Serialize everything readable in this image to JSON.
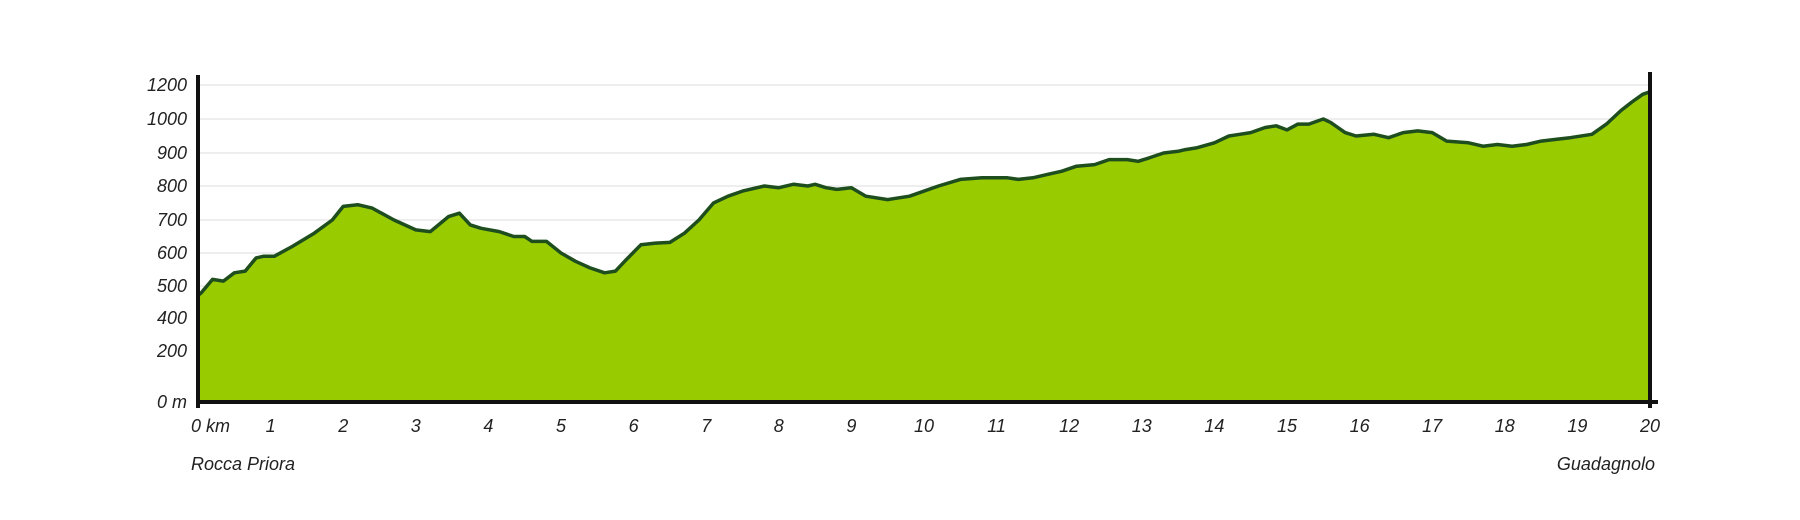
{
  "colors": {
    "fill": "#99cc00",
    "line": "#1e4d1e",
    "grid": "#dddddd",
    "axis": "#111111"
  },
  "start_label": "Rocca Priora",
  "end_label": "Guadagnolo",
  "chart_data": {
    "type": "area",
    "y_tick_labels": [
      "0 m",
      "200",
      "400",
      "500",
      "600",
      "700",
      "800",
      "900",
      "1000",
      "1200"
    ],
    "x_tick_labels": [
      "0 km",
      "1",
      "2",
      "3",
      "4",
      "5",
      "6",
      "7",
      "8",
      "9",
      "10",
      "11",
      "12",
      "13",
      "14",
      "15",
      "16",
      "17",
      "18",
      "19",
      "20"
    ],
    "xlim": [
      0,
      20
    ],
    "grid": true,
    "series": [
      {
        "x": [
          0,
          0.05,
          0.2,
          0.35,
          0.5,
          0.65,
          0.8,
          0.9,
          1.05,
          1.3,
          1.6,
          1.85,
          2.0,
          2.2,
          2.4,
          2.7,
          3.0,
          3.2,
          3.45,
          3.6,
          3.75,
          3.9,
          4.15,
          4.35,
          4.5,
          4.6,
          4.8,
          5.0,
          5.2,
          5.4,
          5.6,
          5.75,
          5.9,
          6.1,
          6.3,
          6.5,
          6.7,
          6.9,
          7.1,
          7.3,
          7.5,
          7.8,
          8.0,
          8.2,
          8.4,
          8.5,
          8.65,
          8.8,
          9.0,
          9.2,
          9.5,
          9.8,
          10.2,
          10.5,
          10.8,
          11.0,
          11.15,
          11.3,
          11.5,
          11.7,
          11.9,
          12.1,
          12.35,
          12.55,
          12.8,
          12.95,
          13.1,
          13.3,
          13.5,
          13.6,
          13.75,
          14.0,
          14.2,
          14.35,
          14.5,
          14.7,
          14.85,
          15.0,
          15.15,
          15.3,
          15.5,
          15.6,
          15.8,
          15.95,
          16.2,
          16.4,
          16.6,
          16.8,
          17.0,
          17.2,
          17.5,
          17.7,
          17.9,
          18.1,
          18.3,
          18.5,
          18.7,
          18.9,
          19.2,
          19.4,
          19.6,
          19.75,
          19.9,
          20.0
        ],
        "y": [
          470,
          480,
          520,
          515,
          540,
          545,
          585,
          590,
          590,
          620,
          660,
          700,
          740,
          745,
          735,
          700,
          670,
          665,
          710,
          720,
          685,
          675,
          665,
          650,
          650,
          635,
          635,
          600,
          575,
          555,
          540,
          545,
          580,
          625,
          630,
          632,
          660,
          700,
          750,
          770,
          785,
          800,
          795,
          805,
          800,
          805,
          795,
          790,
          795,
          770,
          760,
          770,
          800,
          820,
          825,
          825,
          825,
          820,
          825,
          835,
          845,
          860,
          865,
          880,
          880,
          875,
          885,
          900,
          905,
          910,
          915,
          930,
          950,
          955,
          960,
          975,
          980,
          968,
          985,
          985,
          1000,
          990,
          960,
          950,
          955,
          945,
          960,
          965,
          960,
          935,
          930,
          920,
          925,
          920,
          925,
          935,
          940,
          945,
          955,
          985,
          1050,
          1100,
          1145,
          1160
        ]
      }
    ]
  }
}
